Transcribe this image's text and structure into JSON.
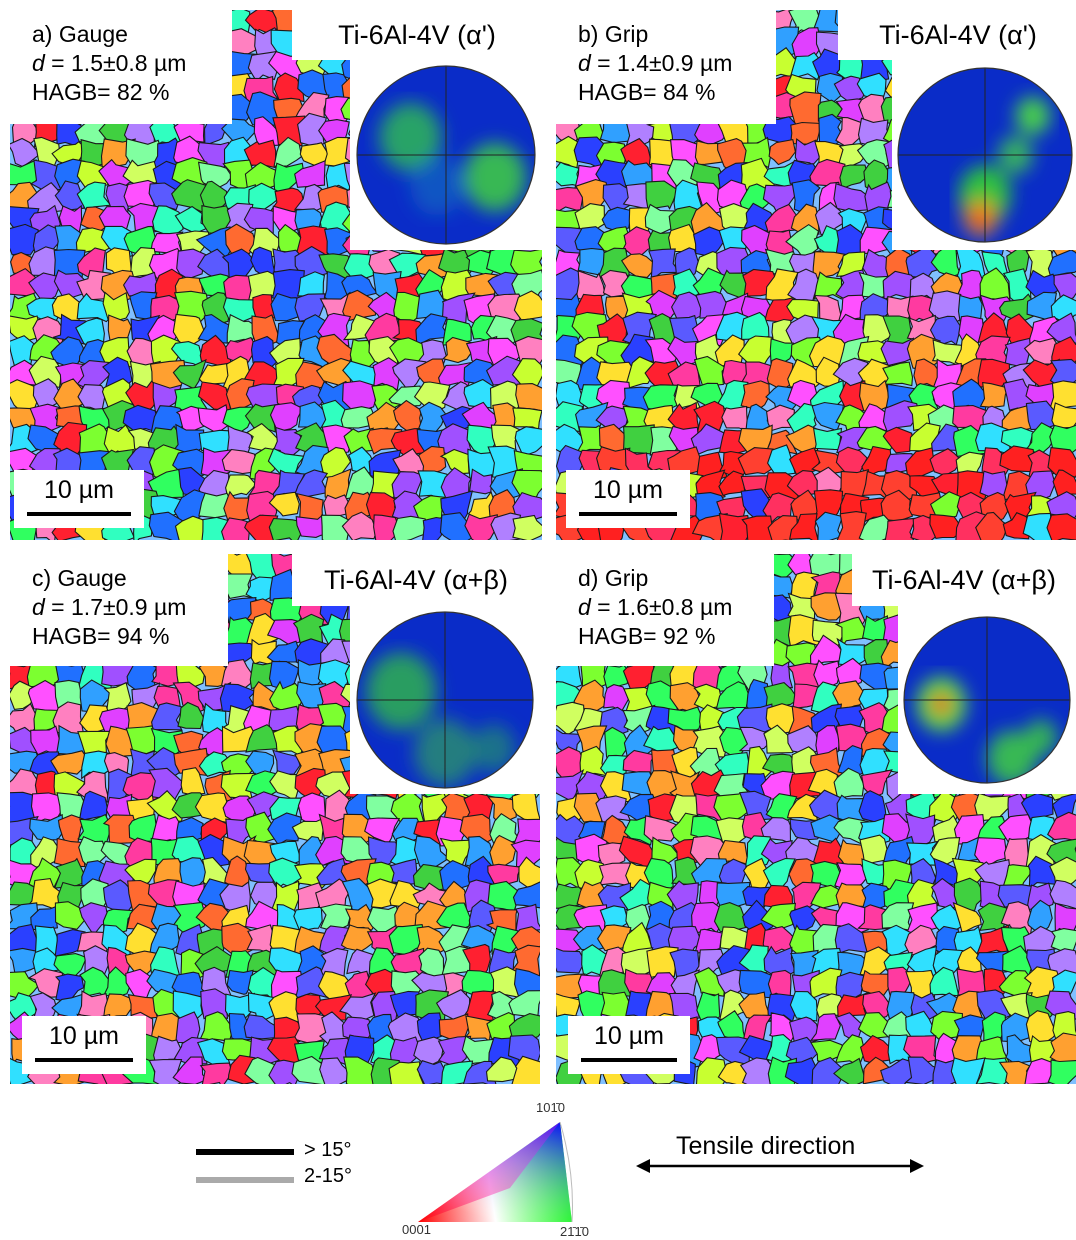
{
  "panels": [
    {
      "id": "a",
      "label": "a) Gauge",
      "d_symbol": "d",
      "d_value": " = 1.5±0.8 µm",
      "hagb": "HAGB= 82 %",
      "material": "Ti-6Al-4V (α')",
      "scale": "10 µm",
      "pole_figure": {
        "hotspots": [
          {
            "level": "medium",
            "region": "left"
          },
          {
            "level": "medium",
            "region": "right-lower"
          }
        ]
      }
    },
    {
      "id": "b",
      "label": "b) Grip",
      "d_symbol": "d",
      "d_value": " = 1.4±0.9 µm",
      "hagb": "HAGB= 84 %",
      "material": "Ti-6Al-4V (α')",
      "scale": "10 µm",
      "pole_figure": {
        "hotspots": [
          {
            "level": "high",
            "region": "bottom"
          },
          {
            "level": "medium",
            "region": "top-right band"
          }
        ]
      }
    },
    {
      "id": "c",
      "label": "c) Gauge",
      "d_symbol": "d",
      "d_value": " = 1.7±0.9 µm",
      "hagb": "HAGB= 94 %",
      "material": "Ti-6Al-4V (α+β)",
      "scale": "10 µm",
      "pole_figure": {
        "hotspots": [
          {
            "level": "medium",
            "region": "left"
          },
          {
            "level": "low",
            "region": "bottom-right"
          }
        ]
      }
    },
    {
      "id": "d",
      "label": "d) Grip",
      "d_symbol": "d",
      "d_value": " = 1.6±0.8 µm",
      "hagb": "HAGB= 92 %",
      "material": "Ti-6Al-4V (α+β)",
      "scale": "10 µm",
      "pole_figure": {
        "hotspots": [
          {
            "level": "high",
            "region": "left"
          },
          {
            "level": "medium",
            "region": "bottom-right"
          }
        ]
      }
    }
  ],
  "legend": {
    "hagb_label": "> 15°",
    "lagb_label": "2-15°",
    "hagb_color": "#000000",
    "lagb_color": "#aaaaaa"
  },
  "ipf": {
    "top": "101̄0",
    "left": "0001",
    "right": "21̄1̄0"
  },
  "tensile": {
    "label": "Tensile direction"
  },
  "colors": {
    "pole_low": "#0a2cc8",
    "pole_mid": "#2fd02f",
    "pole_high": "#e01010"
  }
}
